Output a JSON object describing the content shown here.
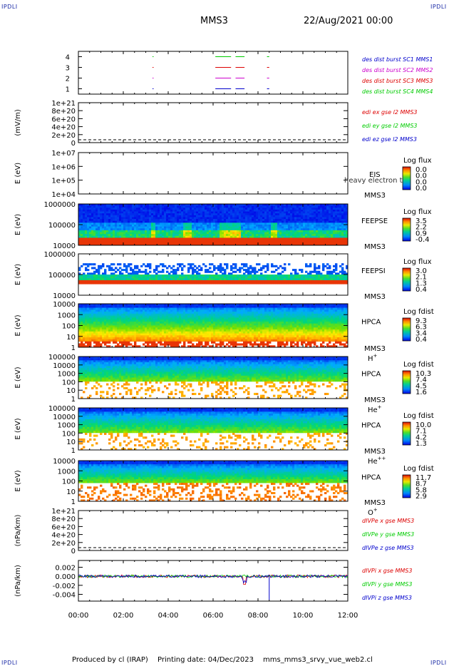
{
  "header": {
    "corner_label": "IPDLI",
    "spacecraft": "MMS3",
    "datetime": "22/Aug/2021 00:00"
  },
  "footer": {
    "produced_by": "Produced by cl (IRAP)",
    "printing_date": "Printing date: 04/Dec/2023",
    "filename": "mms_mms3_srvy_vue_web2.cl"
  },
  "colors": {
    "black": "#000000",
    "red": "#dd0000",
    "green": "#00cc00",
    "blue": "#0000cc",
    "magenta": "#cc00cc"
  },
  "chart_data": [
    {
      "type": "line",
      "panel": "burst",
      "ylabel": "",
      "yticks": [
        "4",
        "3",
        "2",
        "1"
      ],
      "ylim": [
        0.5,
        4.5
      ],
      "series": [
        {
          "name": "des dist burst SC1 MMS1",
          "color": "#0000cc",
          "level": 1,
          "segments": [
            [
              3.3,
              3.32
            ],
            [
              6.1,
              6.8
            ],
            [
              7.0,
              7.4
            ],
            [
              8.4,
              8.5
            ]
          ]
        },
        {
          "name": "des dist burst SC2 MMS2",
          "color": "#cc00cc",
          "level": 2,
          "segments": [
            [
              3.3,
              3.32
            ],
            [
              6.1,
              6.8
            ],
            [
              7.0,
              7.4
            ],
            [
              8.4,
              8.5
            ]
          ]
        },
        {
          "name": "des dist burst SC3 MMS3",
          "color": "#dd0000",
          "level": 3,
          "segments": [
            [
              3.3,
              3.32
            ],
            [
              6.1,
              6.8
            ],
            [
              7.0,
              7.4
            ],
            [
              8.4,
              8.5
            ]
          ]
        },
        {
          "name": "des dist burst SC4 MMS4",
          "color": "#00cc00",
          "level": 4,
          "segments": [
            [
              3.3,
              3.32
            ],
            [
              6.1,
              6.8
            ],
            [
              7.0,
              7.4
            ],
            [
              8.4,
              8.5
            ]
          ]
        }
      ]
    },
    {
      "type": "line",
      "panel": "edi",
      "ylabel": "(mV/m)",
      "yticks": [
        "1e+21",
        "8e+20",
        "6e+20",
        "4e+20",
        "2e+20",
        "0"
      ],
      "ylim": [
        0,
        1e+21
      ],
      "series": [
        {
          "name": "edi ex gse l2 MMS3",
          "color": "#dd0000"
        },
        {
          "name": "edi ey gse l2 MMS3",
          "color": "#00cc00"
        },
        {
          "name": "edi ez gse l2 MMS3",
          "color": "#0000cc"
        }
      ]
    },
    {
      "type": "heatmap",
      "panel": "eis",
      "ylabel": "E (eV)",
      "yticks": [
        "1e+07",
        "1e+06",
        "1e+05",
        "1e+04"
      ],
      "label1": "EIS",
      "label2": "MMS3",
      "overlay": "heavy electron to",
      "cbar_title": "Log flux",
      "cbar_ticks": [
        "0.0",
        "0.0",
        "0.0",
        "0.0"
      ],
      "empty": true
    },
    {
      "type": "heatmap",
      "panel": "feepse",
      "ylabel": "E (eV)",
      "yticks": [
        "1000000",
        "100000",
        "10000"
      ],
      "label1": "FEEPSE",
      "label2": "MMS3",
      "cbar_title": "Log flux",
      "cbar_ticks": [
        "3.5",
        "2.2",
        "0.9",
        "-0.4"
      ]
    },
    {
      "type": "heatmap",
      "panel": "feepsi",
      "ylabel": "E (eV)",
      "yticks": [
        "1000000",
        "100000",
        "10000"
      ],
      "label1": "FEEPSI",
      "label2": "MMS3",
      "cbar_title": "Log flux",
      "cbar_ticks": [
        "3.0",
        "2.1",
        "1.3",
        "0.4"
      ]
    },
    {
      "type": "heatmap",
      "panel": "hpca_h",
      "ylabel": "E (eV)",
      "yticks": [
        "10000",
        "1000",
        "100",
        "10",
        "1"
      ],
      "label1": "HPCA",
      "label2": "MMS3",
      "species": "H",
      "species_sup": "+",
      "cbar_title": "Log fdist",
      "cbar_ticks": [
        "9.3",
        "6.3",
        "3.4",
        "0.4"
      ]
    },
    {
      "type": "heatmap",
      "panel": "hpca_he",
      "ylabel": "E (eV)",
      "yticks": [
        "100000",
        "10000",
        "1000",
        "100",
        "10",
        "1"
      ],
      "label1": "HPCA",
      "label2": "MMS3",
      "species": "He",
      "species_sup": "+",
      "cbar_title": "Log fdist",
      "cbar_ticks": [
        "10.3",
        "7.4",
        "4.5",
        "1.6"
      ]
    },
    {
      "type": "heatmap",
      "panel": "hpca_hepp",
      "ylabel": "E (eV)",
      "yticks": [
        "100000",
        "10000",
        "1000",
        "100",
        "10",
        "1"
      ],
      "label1": "HPCA",
      "label2": "MMS3",
      "species": "He",
      "species_sup": "++",
      "cbar_title": "Log fdist",
      "cbar_ticks": [
        "10.0",
        "7.1",
        "4.2",
        "1.3"
      ]
    },
    {
      "type": "heatmap",
      "panel": "hpca_o",
      "ylabel": "E (eV)",
      "yticks": [
        "10000",
        "1000",
        "100",
        "10",
        "1"
      ],
      "label1": "HPCA",
      "label2": "MMS3",
      "species": "O",
      "species_sup": "+",
      "cbar_title": "Log fdist",
      "cbar_ticks": [
        "11.7",
        "8.7",
        "5.8",
        "2.9"
      ]
    },
    {
      "type": "line",
      "panel": "divpe",
      "ylabel": "(nPa/km)",
      "yticks": [
        "1e+21",
        "8e+20",
        "6e+20",
        "4e+20",
        "2e+20",
        "0"
      ],
      "ylim": [
        0,
        1e+21
      ],
      "series": [
        {
          "name": "dIVPe x gse MMS3",
          "color": "#dd0000"
        },
        {
          "name": "dIVPe y gse MMS3",
          "color": "#00cc00"
        },
        {
          "name": "dIVPe z gse MMS3",
          "color": "#0000cc"
        }
      ]
    },
    {
      "type": "line",
      "panel": "divpi",
      "ylabel": "(nPa/km)",
      "yticks": [
        "0.002",
        "0.000",
        "-0.002",
        "-0.004"
      ],
      "ylim": [
        -0.0055,
        0.0035
      ],
      "series": [
        {
          "name": "dIVPi x gse MMS3",
          "color": "#dd0000"
        },
        {
          "name": "dIVPi y gse MMS3",
          "color": "#00cc00"
        },
        {
          "name": "dIVPi z gse MMS3",
          "color": "#0000cc"
        }
      ]
    }
  ],
  "time_axis": {
    "ticks": [
      "00:00",
      "02:00",
      "04:00",
      "06:00",
      "08:00",
      "10:00",
      "12:00"
    ]
  }
}
